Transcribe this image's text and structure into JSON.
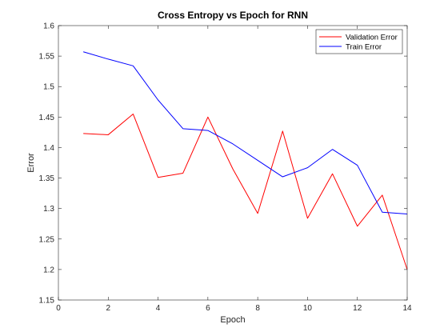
{
  "chart_data": {
    "type": "line",
    "title": "Cross Entropy vs Epoch for RNN",
    "xlabel": "Epoch",
    "ylabel": "Error",
    "xlim": [
      0,
      14
    ],
    "ylim": [
      1.15,
      1.6
    ],
    "xticks": [
      0,
      2,
      4,
      6,
      8,
      10,
      12,
      14
    ],
    "xtick_labels": [
      "0",
      "2",
      "4",
      "6",
      "8",
      "10",
      "12",
      "14"
    ],
    "yticks": [
      1.15,
      1.2,
      1.25,
      1.3,
      1.35,
      1.4,
      1.45,
      1.5,
      1.55,
      1.6
    ],
    "ytick_labels": [
      "1.15",
      "1.2",
      "1.25",
      "1.3",
      "1.35",
      "1.4",
      "1.45",
      "1.5",
      "1.55",
      "1.6"
    ],
    "grid": false,
    "legend_position": "top-right",
    "x": [
      1,
      2,
      3,
      4,
      5,
      6,
      7,
      8,
      9,
      10,
      11,
      12,
      13,
      14
    ],
    "series": [
      {
        "name": "Validation Error",
        "color": "#ff0000",
        "values": [
          1.423,
          1.421,
          1.455,
          1.351,
          1.358,
          1.45,
          1.365,
          1.292,
          1.427,
          1.284,
          1.357,
          1.271,
          1.322,
          1.2
        ]
      },
      {
        "name": "Train Error",
        "color": "#0000ff",
        "values": [
          1.557,
          1.545,
          1.534,
          1.478,
          1.431,
          1.428,
          1.406,
          1.379,
          1.352,
          1.367,
          1.397,
          1.371,
          1.294,
          1.291
        ]
      }
    ]
  }
}
